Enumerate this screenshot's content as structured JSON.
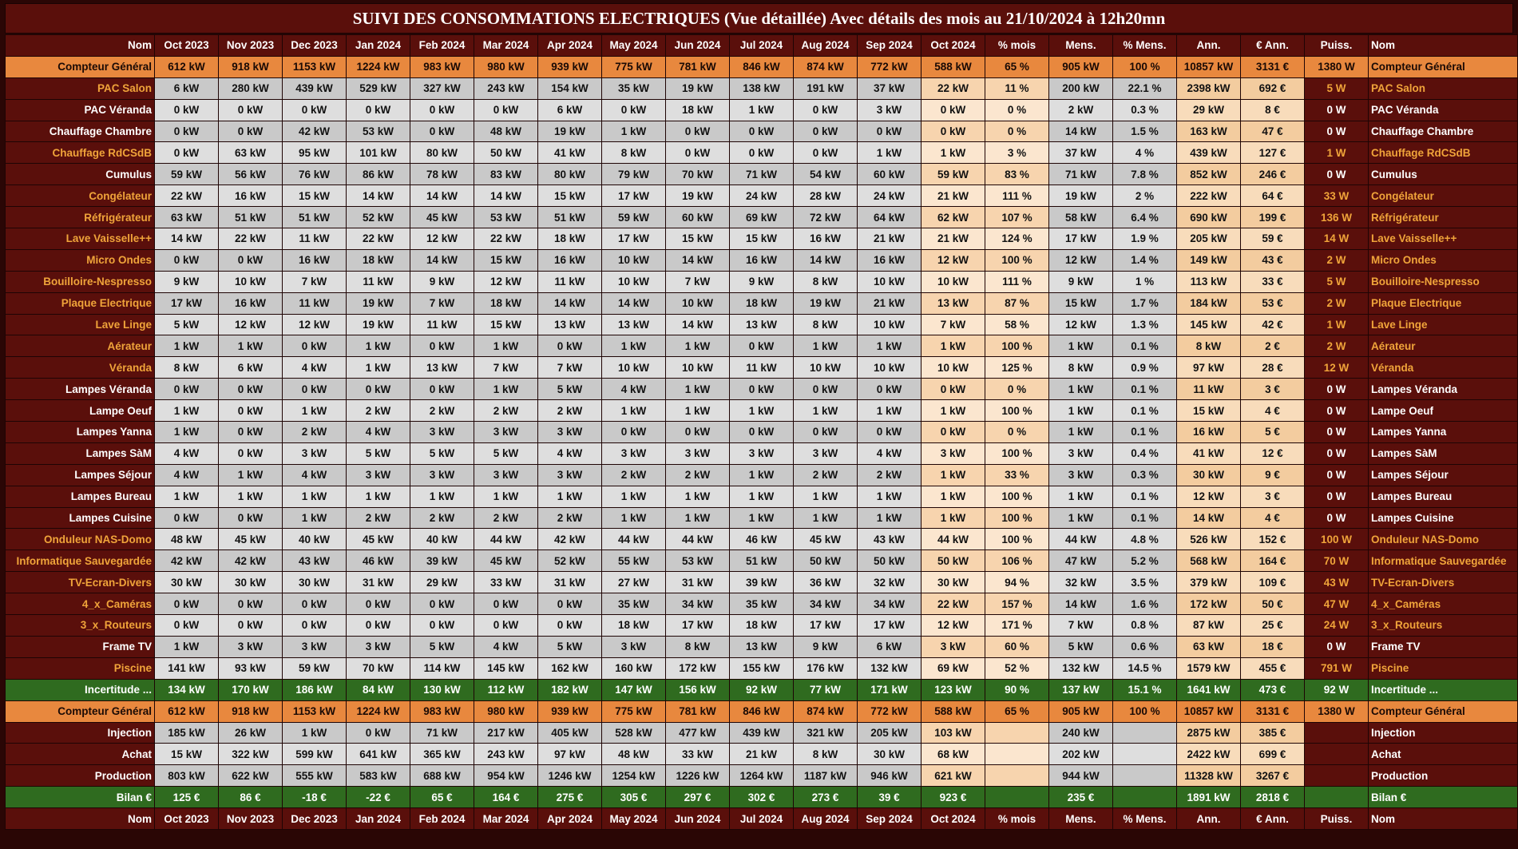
{
  "title": "SUIVI DES CONSOMMATIONS ELECTRIQUES (Vue détaillée) Avec détails des mois au 21/10/2024 à 12h20mn",
  "headers": [
    "Nom",
    "Oct 2023",
    "Nov 2023",
    "Dec 2023",
    "Jan 2024",
    "Feb 2024",
    "Mar 2024",
    "Apr 2024",
    "May 2024",
    "Jun 2024",
    "Jul 2024",
    "Aug 2024",
    "Sep 2024",
    "Oct 2024",
    "% mois",
    "Mens.",
    "% Mens.",
    "Ann.",
    "€ Ann.",
    "Puiss.",
    "Nom"
  ],
  "rows": [
    {
      "name": "Compteur Général",
      "cells": [
        "612 kW",
        "918 kW",
        "1153 kW",
        "1224 kW",
        "983 kW",
        "980 kW",
        "939 kW",
        "775 kW",
        "781 kW",
        "846 kW",
        "874 kW",
        "772 kW",
        "588 kW",
        "65 %",
        "905 kW",
        "100 %",
        "10857 kW",
        "3131 €",
        "1380 W"
      ]
    },
    {
      "name": "PAC Salon",
      "cells": [
        "6 kW",
        "280 kW",
        "439 kW",
        "529 kW",
        "327 kW",
        "243 kW",
        "154 kW",
        "35 kW",
        "19 kW",
        "138 kW",
        "191 kW",
        "37 kW",
        "22 kW",
        "11 %",
        "200 kW",
        "22.1 %",
        "2398 kW",
        "692 €",
        "5 W"
      ]
    },
    {
      "name": "PAC Véranda",
      "cells": [
        "0 kW",
        "0 kW",
        "0 kW",
        "0 kW",
        "0 kW",
        "0 kW",
        "6 kW",
        "0 kW",
        "18 kW",
        "1 kW",
        "0 kW",
        "3 kW",
        "0 kW",
        "0 %",
        "2 kW",
        "0.3 %",
        "29 kW",
        "8 €",
        "0 W"
      ]
    },
    {
      "name": "Chauffage Chambre",
      "cells": [
        "0 kW",
        "0 kW",
        "42 kW",
        "53 kW",
        "0 kW",
        "48 kW",
        "19 kW",
        "1 kW",
        "0 kW",
        "0 kW",
        "0 kW",
        "0 kW",
        "0 kW",
        "0 %",
        "14 kW",
        "1.5 %",
        "163 kW",
        "47 €",
        "0 W"
      ]
    },
    {
      "name": "Chauffage RdCSdB",
      "cells": [
        "0 kW",
        "63 kW",
        "95 kW",
        "101 kW",
        "80 kW",
        "50 kW",
        "41 kW",
        "8 kW",
        "0 kW",
        "0 kW",
        "0 kW",
        "1 kW",
        "1 kW",
        "3 %",
        "37 kW",
        "4 %",
        "439 kW",
        "127 €",
        "1 W"
      ]
    },
    {
      "name": "Cumulus",
      "cells": [
        "59 kW",
        "56 kW",
        "76 kW",
        "86 kW",
        "78 kW",
        "83 kW",
        "80 kW",
        "79 kW",
        "70 kW",
        "71 kW",
        "54 kW",
        "60 kW",
        "59 kW",
        "83 %",
        "71 kW",
        "7.8 %",
        "852 kW",
        "246 €",
        "0 W"
      ]
    },
    {
      "name": "Congélateur",
      "cells": [
        "22 kW",
        "16 kW",
        "15 kW",
        "14 kW",
        "14 kW",
        "14 kW",
        "15 kW",
        "17 kW",
        "19 kW",
        "24 kW",
        "28 kW",
        "24 kW",
        "21 kW",
        "111 %",
        "19 kW",
        "2 %",
        "222 kW",
        "64 €",
        "33 W"
      ]
    },
    {
      "name": "Réfrigérateur",
      "cells": [
        "63 kW",
        "51 kW",
        "51 kW",
        "52 kW",
        "45 kW",
        "53 kW",
        "51 kW",
        "59 kW",
        "60 kW",
        "69 kW",
        "72 kW",
        "64 kW",
        "62 kW",
        "107 %",
        "58 kW",
        "6.4 %",
        "690 kW",
        "199 €",
        "136 W"
      ]
    },
    {
      "name": "Lave Vaisselle++",
      "cells": [
        "14 kW",
        "22 kW",
        "11 kW",
        "22 kW",
        "12 kW",
        "22 kW",
        "18 kW",
        "17 kW",
        "15 kW",
        "15 kW",
        "16 kW",
        "21 kW",
        "21 kW",
        "124 %",
        "17 kW",
        "1.9 %",
        "205 kW",
        "59 €",
        "14 W"
      ]
    },
    {
      "name": "Micro Ondes",
      "cells": [
        "0 kW",
        "0 kW",
        "16 kW",
        "18 kW",
        "14 kW",
        "15 kW",
        "16 kW",
        "10 kW",
        "14 kW",
        "16 kW",
        "14 kW",
        "16 kW",
        "12 kW",
        "100 %",
        "12 kW",
        "1.4 %",
        "149 kW",
        "43 €",
        "2 W"
      ]
    },
    {
      "name": "Bouilloire-Nespresso",
      "cells": [
        "9 kW",
        "10 kW",
        "7 kW",
        "11 kW",
        "9 kW",
        "12 kW",
        "11 kW",
        "10 kW",
        "7 kW",
        "9 kW",
        "8 kW",
        "10 kW",
        "10 kW",
        "111 %",
        "9 kW",
        "1 %",
        "113 kW",
        "33 €",
        "5 W"
      ]
    },
    {
      "name": "Plaque Electrique",
      "cells": [
        "17 kW",
        "16 kW",
        "11 kW",
        "19 kW",
        "7 kW",
        "18 kW",
        "14 kW",
        "14 kW",
        "10 kW",
        "18 kW",
        "19 kW",
        "21 kW",
        "13 kW",
        "87 %",
        "15 kW",
        "1.7 %",
        "184 kW",
        "53 €",
        "2 W"
      ]
    },
    {
      "name": "Lave Linge",
      "cells": [
        "5 kW",
        "12 kW",
        "12 kW",
        "19 kW",
        "11 kW",
        "15 kW",
        "13 kW",
        "13 kW",
        "14 kW",
        "13 kW",
        "8 kW",
        "10 kW",
        "7 kW",
        "58 %",
        "12 kW",
        "1.3 %",
        "145 kW",
        "42 €",
        "1 W"
      ]
    },
    {
      "name": "Aérateur",
      "cells": [
        "1 kW",
        "1 kW",
        "0 kW",
        "1 kW",
        "0 kW",
        "1 kW",
        "0 kW",
        "1 kW",
        "1 kW",
        "0 kW",
        "1 kW",
        "1 kW",
        "1 kW",
        "100 %",
        "1 kW",
        "0.1 %",
        "8 kW",
        "2 €",
        "2 W"
      ]
    },
    {
      "name": "Véranda",
      "cells": [
        "8 kW",
        "6 kW",
        "4 kW",
        "1 kW",
        "13 kW",
        "7 kW",
        "7 kW",
        "10 kW",
        "10 kW",
        "11 kW",
        "10 kW",
        "10 kW",
        "10 kW",
        "125 %",
        "8 kW",
        "0.9 %",
        "97 kW",
        "28 €",
        "12 W"
      ]
    },
    {
      "name": "Lampes Véranda",
      "cells": [
        "0 kW",
        "0 kW",
        "0 kW",
        "0 kW",
        "0 kW",
        "1 kW",
        "5 kW",
        "4 kW",
        "1 kW",
        "0 kW",
        "0 kW",
        "0 kW",
        "0 kW",
        "0 %",
        "1 kW",
        "0.1 %",
        "11 kW",
        "3 €",
        "0 W"
      ]
    },
    {
      "name": "Lampe Oeuf",
      "cells": [
        "1 kW",
        "0 kW",
        "1 kW",
        "2 kW",
        "2 kW",
        "2 kW",
        "2 kW",
        "1 kW",
        "1 kW",
        "1 kW",
        "1 kW",
        "1 kW",
        "1 kW",
        "100 %",
        "1 kW",
        "0.1 %",
        "15 kW",
        "4 €",
        "0 W"
      ]
    },
    {
      "name": "Lampes Yanna",
      "cells": [
        "1 kW",
        "0 kW",
        "2 kW",
        "4 kW",
        "3 kW",
        "3 kW",
        "3 kW",
        "0 kW",
        "0 kW",
        "0 kW",
        "0 kW",
        "0 kW",
        "0 kW",
        "0 %",
        "1 kW",
        "0.1 %",
        "16 kW",
        "5 €",
        "0 W"
      ]
    },
    {
      "name": "Lampes SàM",
      "cells": [
        "4 kW",
        "0 kW",
        "3 kW",
        "5 kW",
        "5 kW",
        "5 kW",
        "4 kW",
        "3 kW",
        "3 kW",
        "3 kW",
        "3 kW",
        "4 kW",
        "3 kW",
        "100 %",
        "3 kW",
        "0.4 %",
        "41 kW",
        "12 €",
        "0 W"
      ]
    },
    {
      "name": "Lampes Séjour",
      "cells": [
        "4 kW",
        "1 kW",
        "4 kW",
        "3 kW",
        "3 kW",
        "3 kW",
        "3 kW",
        "2 kW",
        "2 kW",
        "1 kW",
        "2 kW",
        "2 kW",
        "1 kW",
        "33 %",
        "3 kW",
        "0.3 %",
        "30 kW",
        "9 €",
        "0 W"
      ]
    },
    {
      "name": "Lampes Bureau",
      "cells": [
        "1 kW",
        "1 kW",
        "1 kW",
        "1 kW",
        "1 kW",
        "1 kW",
        "1 kW",
        "1 kW",
        "1 kW",
        "1 kW",
        "1 kW",
        "1 kW",
        "1 kW",
        "100 %",
        "1 kW",
        "0.1 %",
        "12 kW",
        "3 €",
        "0 W"
      ]
    },
    {
      "name": "Lampes Cuisine",
      "cells": [
        "0 kW",
        "0 kW",
        "1 kW",
        "2 kW",
        "2 kW",
        "2 kW",
        "2 kW",
        "1 kW",
        "1 kW",
        "1 kW",
        "1 kW",
        "1 kW",
        "1 kW",
        "100 %",
        "1 kW",
        "0.1 %",
        "14 kW",
        "4 €",
        "0 W"
      ]
    },
    {
      "name": "Onduleur NAS-Domo",
      "cells": [
        "48 kW",
        "45 kW",
        "40 kW",
        "45 kW",
        "40 kW",
        "44 kW",
        "42 kW",
        "44 kW",
        "44 kW",
        "46 kW",
        "45 kW",
        "43 kW",
        "44 kW",
        "100 %",
        "44 kW",
        "4.8 %",
        "526 kW",
        "152 €",
        "100 W"
      ]
    },
    {
      "name": "Informatique Sauvegardée",
      "cells": [
        "42 kW",
        "42 kW",
        "43 kW",
        "46 kW",
        "39 kW",
        "45 kW",
        "52 kW",
        "55 kW",
        "53 kW",
        "51 kW",
        "50 kW",
        "50 kW",
        "50 kW",
        "106 %",
        "47 kW",
        "5.2 %",
        "568 kW",
        "164 €",
        "70 W"
      ]
    },
    {
      "name": "TV-Ecran-Divers",
      "cells": [
        "30 kW",
        "30 kW",
        "30 kW",
        "31 kW",
        "29 kW",
        "33 kW",
        "31 kW",
        "27 kW",
        "31 kW",
        "39 kW",
        "36 kW",
        "32 kW",
        "30 kW",
        "94 %",
        "32 kW",
        "3.5 %",
        "379 kW",
        "109 €",
        "43 W"
      ]
    },
    {
      "name": "4_x_Caméras",
      "cells": [
        "0 kW",
        "0 kW",
        "0 kW",
        "0 kW",
        "0 kW",
        "0 kW",
        "0 kW",
        "35 kW",
        "34 kW",
        "35 kW",
        "34 kW",
        "34 kW",
        "22 kW",
        "157 %",
        "14 kW",
        "1.6 %",
        "172 kW",
        "50 €",
        "47 W"
      ]
    },
    {
      "name": "3_x_Routeurs",
      "cells": [
        "0 kW",
        "0 kW",
        "0 kW",
        "0 kW",
        "0 kW",
        "0 kW",
        "0 kW",
        "18 kW",
        "17 kW",
        "18 kW",
        "17 kW",
        "17 kW",
        "12 kW",
        "171 %",
        "7 kW",
        "0.8 %",
        "87 kW",
        "25 €",
        "24 W"
      ]
    },
    {
      "name": "Frame TV",
      "cells": [
        "1 kW",
        "3 kW",
        "3 kW",
        "3 kW",
        "5 kW",
        "4 kW",
        "5 kW",
        "3 kW",
        "8 kW",
        "13 kW",
        "9 kW",
        "6 kW",
        "3 kW",
        "60 %",
        "5 kW",
        "0.6 %",
        "63 kW",
        "18 €",
        "0 W"
      ]
    },
    {
      "name": "Piscine",
      "cells": [
        "141 kW",
        "93 kW",
        "59 kW",
        "70 kW",
        "114 kW",
        "145 kW",
        "162 kW",
        "160 kW",
        "172 kW",
        "155 kW",
        "176 kW",
        "132 kW",
        "69 kW",
        "52 %",
        "132 kW",
        "14.5 %",
        "1579 kW",
        "455 €",
        "791 W"
      ]
    },
    {
      "name": "Incertitude ...",
      "cells": [
        "134 kW",
        "170 kW",
        "186 kW",
        "84 kW",
        "130 kW",
        "112 kW",
        "182 kW",
        "147 kW",
        "156 kW",
        "92 kW",
        "77 kW",
        "171 kW",
        "123 kW",
        "90 %",
        "137 kW",
        "15.1 %",
        "1641 kW",
        "473 €",
        "92 W"
      ]
    },
    {
      "name": "Compteur Général",
      "cells": [
        "612 kW",
        "918 kW",
        "1153 kW",
        "1224 kW",
        "983 kW",
        "980 kW",
        "939 kW",
        "775 kW",
        "781 kW",
        "846 kW",
        "874 kW",
        "772 kW",
        "588 kW",
        "65 %",
        "905 kW",
        "100 %",
        "10857 kW",
        "3131 €",
        "1380 W"
      ]
    },
    {
      "name": "Injection",
      "cells": [
        "185 kW",
        "26 kW",
        "1 kW",
        "0 kW",
        "71 kW",
        "217 kW",
        "405 kW",
        "528 kW",
        "477 kW",
        "439 kW",
        "321 kW",
        "205 kW",
        "103 kW",
        null,
        "240 kW",
        null,
        "2875 kW",
        "385 €",
        null
      ]
    },
    {
      "name": "Achat",
      "cells": [
        "15 kW",
        "322 kW",
        "599 kW",
        "641 kW",
        "365 kW",
        "243 kW",
        "97 kW",
        "48 kW",
        "33 kW",
        "21 kW",
        "8 kW",
        "30 kW",
        "68 kW",
        null,
        "202 kW",
        null,
        "2422 kW",
        "699 €",
        null
      ]
    },
    {
      "name": "Production",
      "cells": [
        "803 kW",
        "622 kW",
        "555 kW",
        "583 kW",
        "688 kW",
        "954 kW",
        "1246 kW",
        "1254 kW",
        "1226 kW",
        "1264 kW",
        "1187 kW",
        "946 kW",
        "621 kW",
        null,
        "944 kW",
        null,
        "11328 kW",
        "3267 €",
        null
      ]
    },
    {
      "name": "Bilan €",
      "cells": [
        "125 €",
        "86 €",
        "-18 €",
        "-22 €",
        "65 €",
        "164 €",
        "275 €",
        "305 €",
        "297 €",
        "302 €",
        "273 €",
        "39 €",
        "923 €",
        null,
        "235 €",
        null,
        "1891 kW",
        "2818 €",
        null
      ]
    }
  ]
}
